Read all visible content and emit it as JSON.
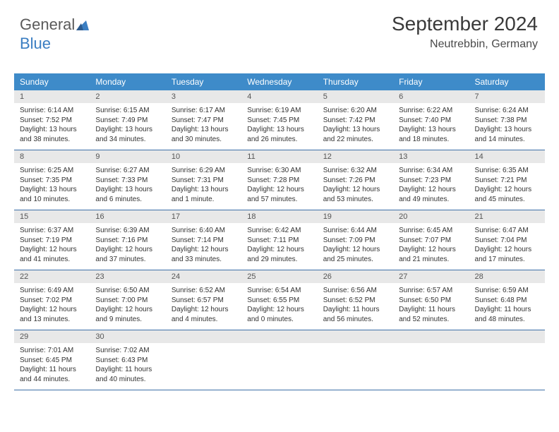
{
  "logo": {
    "part1": "General",
    "part2": "Blue"
  },
  "colors": {
    "header_bg": "#3e8bc9",
    "header_text": "#ffffff",
    "daynum_bg": "#e8e8e8",
    "daynum_text": "#555555",
    "body_text": "#333333",
    "week_border": "#3e6fa8",
    "logo_gray": "#5a5a5a",
    "logo_blue": "#3b7ec2"
  },
  "title": "September 2024",
  "location": "Neutrebbin, Germany",
  "weekdays": [
    "Sunday",
    "Monday",
    "Tuesday",
    "Wednesday",
    "Thursday",
    "Friday",
    "Saturday"
  ],
  "weeks": [
    [
      {
        "num": "1",
        "sunrise": "Sunrise: 6:14 AM",
        "sunset": "Sunset: 7:52 PM",
        "daylight1": "Daylight: 13 hours",
        "daylight2": "and 38 minutes."
      },
      {
        "num": "2",
        "sunrise": "Sunrise: 6:15 AM",
        "sunset": "Sunset: 7:49 PM",
        "daylight1": "Daylight: 13 hours",
        "daylight2": "and 34 minutes."
      },
      {
        "num": "3",
        "sunrise": "Sunrise: 6:17 AM",
        "sunset": "Sunset: 7:47 PM",
        "daylight1": "Daylight: 13 hours",
        "daylight2": "and 30 minutes."
      },
      {
        "num": "4",
        "sunrise": "Sunrise: 6:19 AM",
        "sunset": "Sunset: 7:45 PM",
        "daylight1": "Daylight: 13 hours",
        "daylight2": "and 26 minutes."
      },
      {
        "num": "5",
        "sunrise": "Sunrise: 6:20 AM",
        "sunset": "Sunset: 7:42 PM",
        "daylight1": "Daylight: 13 hours",
        "daylight2": "and 22 minutes."
      },
      {
        "num": "6",
        "sunrise": "Sunrise: 6:22 AM",
        "sunset": "Sunset: 7:40 PM",
        "daylight1": "Daylight: 13 hours",
        "daylight2": "and 18 minutes."
      },
      {
        "num": "7",
        "sunrise": "Sunrise: 6:24 AM",
        "sunset": "Sunset: 7:38 PM",
        "daylight1": "Daylight: 13 hours",
        "daylight2": "and 14 minutes."
      }
    ],
    [
      {
        "num": "8",
        "sunrise": "Sunrise: 6:25 AM",
        "sunset": "Sunset: 7:35 PM",
        "daylight1": "Daylight: 13 hours",
        "daylight2": "and 10 minutes."
      },
      {
        "num": "9",
        "sunrise": "Sunrise: 6:27 AM",
        "sunset": "Sunset: 7:33 PM",
        "daylight1": "Daylight: 13 hours",
        "daylight2": "and 6 minutes."
      },
      {
        "num": "10",
        "sunrise": "Sunrise: 6:29 AM",
        "sunset": "Sunset: 7:31 PM",
        "daylight1": "Daylight: 13 hours",
        "daylight2": "and 1 minute."
      },
      {
        "num": "11",
        "sunrise": "Sunrise: 6:30 AM",
        "sunset": "Sunset: 7:28 PM",
        "daylight1": "Daylight: 12 hours",
        "daylight2": "and 57 minutes."
      },
      {
        "num": "12",
        "sunrise": "Sunrise: 6:32 AM",
        "sunset": "Sunset: 7:26 PM",
        "daylight1": "Daylight: 12 hours",
        "daylight2": "and 53 minutes."
      },
      {
        "num": "13",
        "sunrise": "Sunrise: 6:34 AM",
        "sunset": "Sunset: 7:23 PM",
        "daylight1": "Daylight: 12 hours",
        "daylight2": "and 49 minutes."
      },
      {
        "num": "14",
        "sunrise": "Sunrise: 6:35 AM",
        "sunset": "Sunset: 7:21 PM",
        "daylight1": "Daylight: 12 hours",
        "daylight2": "and 45 minutes."
      }
    ],
    [
      {
        "num": "15",
        "sunrise": "Sunrise: 6:37 AM",
        "sunset": "Sunset: 7:19 PM",
        "daylight1": "Daylight: 12 hours",
        "daylight2": "and 41 minutes."
      },
      {
        "num": "16",
        "sunrise": "Sunrise: 6:39 AM",
        "sunset": "Sunset: 7:16 PM",
        "daylight1": "Daylight: 12 hours",
        "daylight2": "and 37 minutes."
      },
      {
        "num": "17",
        "sunrise": "Sunrise: 6:40 AM",
        "sunset": "Sunset: 7:14 PM",
        "daylight1": "Daylight: 12 hours",
        "daylight2": "and 33 minutes."
      },
      {
        "num": "18",
        "sunrise": "Sunrise: 6:42 AM",
        "sunset": "Sunset: 7:11 PM",
        "daylight1": "Daylight: 12 hours",
        "daylight2": "and 29 minutes."
      },
      {
        "num": "19",
        "sunrise": "Sunrise: 6:44 AM",
        "sunset": "Sunset: 7:09 PM",
        "daylight1": "Daylight: 12 hours",
        "daylight2": "and 25 minutes."
      },
      {
        "num": "20",
        "sunrise": "Sunrise: 6:45 AM",
        "sunset": "Sunset: 7:07 PM",
        "daylight1": "Daylight: 12 hours",
        "daylight2": "and 21 minutes."
      },
      {
        "num": "21",
        "sunrise": "Sunrise: 6:47 AM",
        "sunset": "Sunset: 7:04 PM",
        "daylight1": "Daylight: 12 hours",
        "daylight2": "and 17 minutes."
      }
    ],
    [
      {
        "num": "22",
        "sunrise": "Sunrise: 6:49 AM",
        "sunset": "Sunset: 7:02 PM",
        "daylight1": "Daylight: 12 hours",
        "daylight2": "and 13 minutes."
      },
      {
        "num": "23",
        "sunrise": "Sunrise: 6:50 AM",
        "sunset": "Sunset: 7:00 PM",
        "daylight1": "Daylight: 12 hours",
        "daylight2": "and 9 minutes."
      },
      {
        "num": "24",
        "sunrise": "Sunrise: 6:52 AM",
        "sunset": "Sunset: 6:57 PM",
        "daylight1": "Daylight: 12 hours",
        "daylight2": "and 4 minutes."
      },
      {
        "num": "25",
        "sunrise": "Sunrise: 6:54 AM",
        "sunset": "Sunset: 6:55 PM",
        "daylight1": "Daylight: 12 hours",
        "daylight2": "and 0 minutes."
      },
      {
        "num": "26",
        "sunrise": "Sunrise: 6:56 AM",
        "sunset": "Sunset: 6:52 PM",
        "daylight1": "Daylight: 11 hours",
        "daylight2": "and 56 minutes."
      },
      {
        "num": "27",
        "sunrise": "Sunrise: 6:57 AM",
        "sunset": "Sunset: 6:50 PM",
        "daylight1": "Daylight: 11 hours",
        "daylight2": "and 52 minutes."
      },
      {
        "num": "28",
        "sunrise": "Sunrise: 6:59 AM",
        "sunset": "Sunset: 6:48 PM",
        "daylight1": "Daylight: 11 hours",
        "daylight2": "and 48 minutes."
      }
    ],
    [
      {
        "num": "29",
        "sunrise": "Sunrise: 7:01 AM",
        "sunset": "Sunset: 6:45 PM",
        "daylight1": "Daylight: 11 hours",
        "daylight2": "and 44 minutes."
      },
      {
        "num": "30",
        "sunrise": "Sunrise: 7:02 AM",
        "sunset": "Sunset: 6:43 PM",
        "daylight1": "Daylight: 11 hours",
        "daylight2": "and 40 minutes."
      },
      {
        "empty": true
      },
      {
        "empty": true
      },
      {
        "empty": true
      },
      {
        "empty": true
      },
      {
        "empty": true
      }
    ]
  ]
}
